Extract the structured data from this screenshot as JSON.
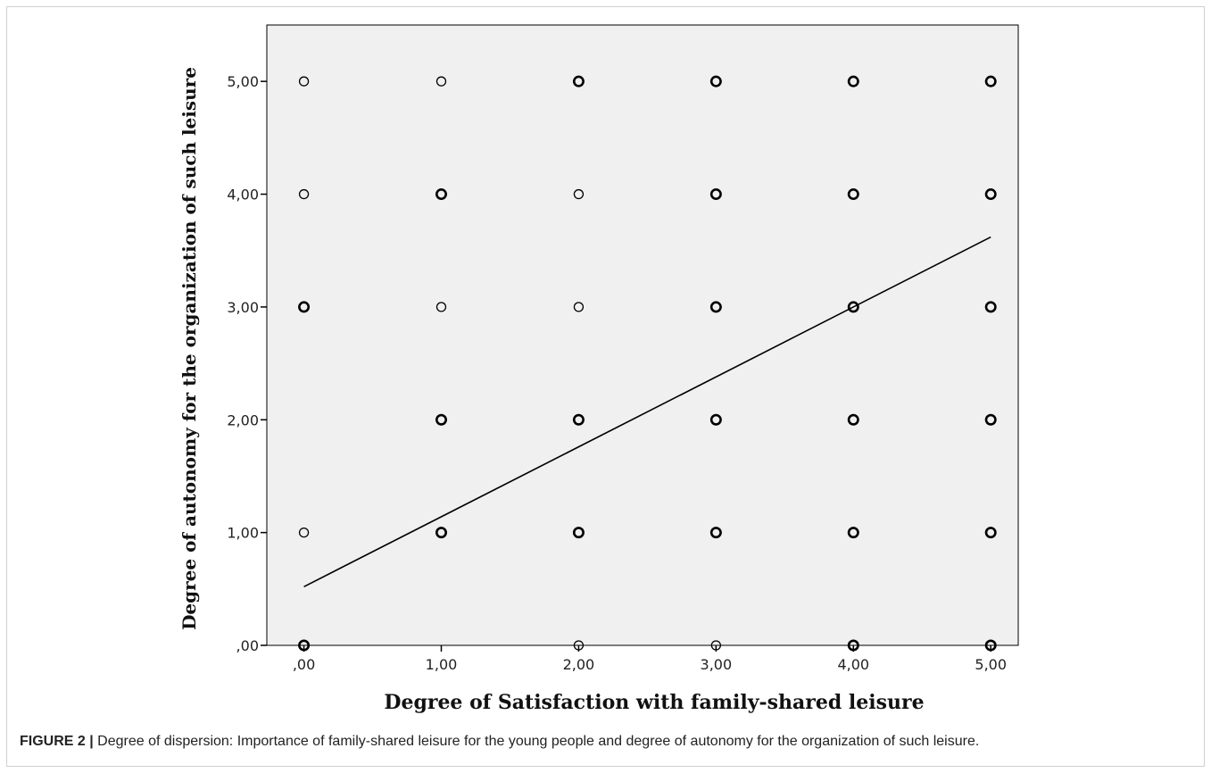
{
  "caption": {
    "label": "FIGURE 2 |",
    "text": " Degree of dispersion: Importance of family-shared leisure for the young people and degree of autonomy for the organization of such leisure."
  },
  "chart_data": {
    "type": "scatter",
    "title": "",
    "xlabel": "Degree of Satisfaction with family-shared leisure",
    "ylabel": "Degree of autonomy for the organization of such leisure",
    "xlim": [
      -0.27,
      5.2
    ],
    "ylim": [
      0,
      5.5
    ],
    "x_ticks": [
      ",00",
      "1,00",
      "2,00",
      "3,00",
      "4,00",
      "5,00"
    ],
    "y_ticks": [
      ",00",
      "1,00",
      "2,00",
      "3,00",
      "4,00",
      "5,00"
    ],
    "grid": false,
    "background_color": "#f0f0f0",
    "marker": "open-circle",
    "points": [
      {
        "x": 0,
        "y": 5,
        "bold": false
      },
      {
        "x": 1,
        "y": 5,
        "bold": false
      },
      {
        "x": 2,
        "y": 5,
        "bold": true
      },
      {
        "x": 3,
        "y": 5,
        "bold": true
      },
      {
        "x": 4,
        "y": 5,
        "bold": true
      },
      {
        "x": 5,
        "y": 5,
        "bold": true
      },
      {
        "x": 0,
        "y": 4,
        "bold": false
      },
      {
        "x": 1,
        "y": 4,
        "bold": true
      },
      {
        "x": 2,
        "y": 4,
        "bold": false
      },
      {
        "x": 3,
        "y": 4,
        "bold": true
      },
      {
        "x": 4,
        "y": 4,
        "bold": true
      },
      {
        "x": 5,
        "y": 4,
        "bold": true
      },
      {
        "x": 0,
        "y": 3,
        "bold": true
      },
      {
        "x": 1,
        "y": 3,
        "bold": false
      },
      {
        "x": 2,
        "y": 3,
        "bold": false
      },
      {
        "x": 3,
        "y": 3,
        "bold": true
      },
      {
        "x": 4,
        "y": 3,
        "bold": true
      },
      {
        "x": 5,
        "y": 3,
        "bold": true
      },
      {
        "x": 1,
        "y": 2,
        "bold": true
      },
      {
        "x": 2,
        "y": 2,
        "bold": true
      },
      {
        "x": 3,
        "y": 2,
        "bold": true
      },
      {
        "x": 4,
        "y": 2,
        "bold": true
      },
      {
        "x": 5,
        "y": 2,
        "bold": true
      },
      {
        "x": 0,
        "y": 1,
        "bold": false
      },
      {
        "x": 1,
        "y": 1,
        "bold": true
      },
      {
        "x": 2,
        "y": 1,
        "bold": true
      },
      {
        "x": 3,
        "y": 1,
        "bold": true
      },
      {
        "x": 4,
        "y": 1,
        "bold": true
      },
      {
        "x": 5,
        "y": 1,
        "bold": true
      },
      {
        "x": 0,
        "y": 0,
        "bold": true
      },
      {
        "x": 2,
        "y": 0,
        "bold": false
      },
      {
        "x": 3,
        "y": 0,
        "bold": false
      },
      {
        "x": 4,
        "y": 0,
        "bold": true
      },
      {
        "x": 5,
        "y": 0,
        "bold": true
      }
    ],
    "fit_line": {
      "x": [
        0,
        5
      ],
      "y": [
        0.52,
        3.62
      ]
    }
  }
}
